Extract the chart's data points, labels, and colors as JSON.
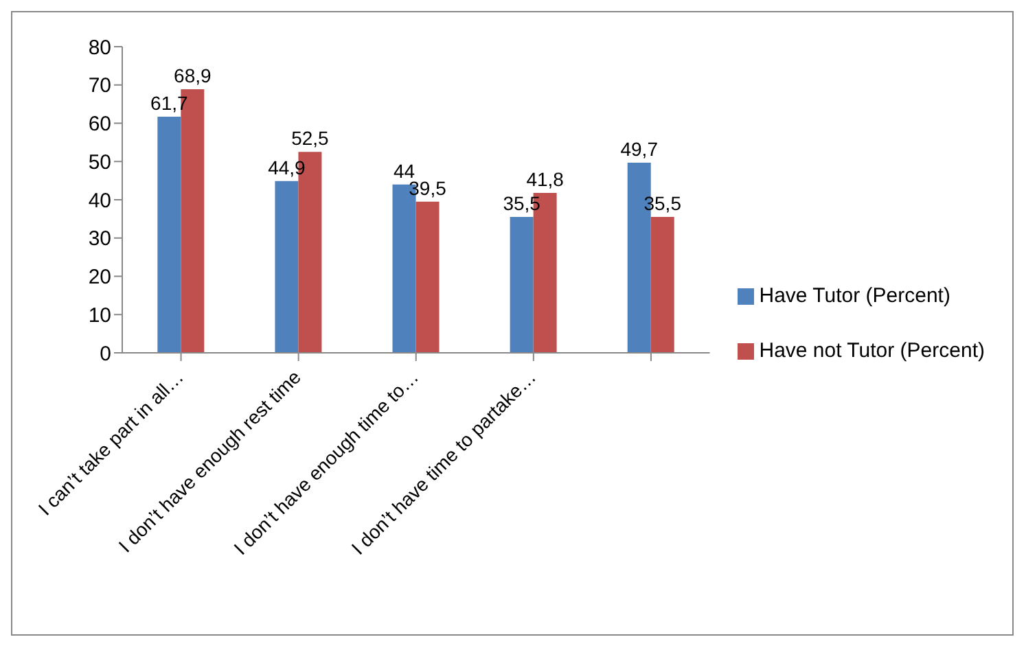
{
  "chart_data": {
    "type": "bar",
    "categories": [
      "I can’t take part in all…",
      "I don’t have enough rest time",
      "I don’t have enough time to…",
      "I don’t have time to partake…",
      null
    ],
    "series": [
      {
        "name": "Have Tutor (Percent)",
        "color": "#4f81bd",
        "values": [
          61.7,
          44.9,
          44,
          35.5,
          49.7
        ],
        "value_labels": [
          "61,7",
          "44,9",
          "44",
          "35,5",
          "49,7"
        ]
      },
      {
        "name": "Have not Tutor (Percent)",
        "color": "#c0504d",
        "values": [
          68.9,
          52.5,
          39.5,
          41.8,
          35.5
        ],
        "value_labels": [
          "68,9",
          "52,5",
          "39,5",
          "41,8",
          "35,5"
        ]
      }
    ],
    "ylim": [
      0,
      80
    ],
    "yticks": [
      0,
      10,
      20,
      30,
      40,
      50,
      60,
      70,
      80
    ],
    "grid": false,
    "legend": "right"
  }
}
